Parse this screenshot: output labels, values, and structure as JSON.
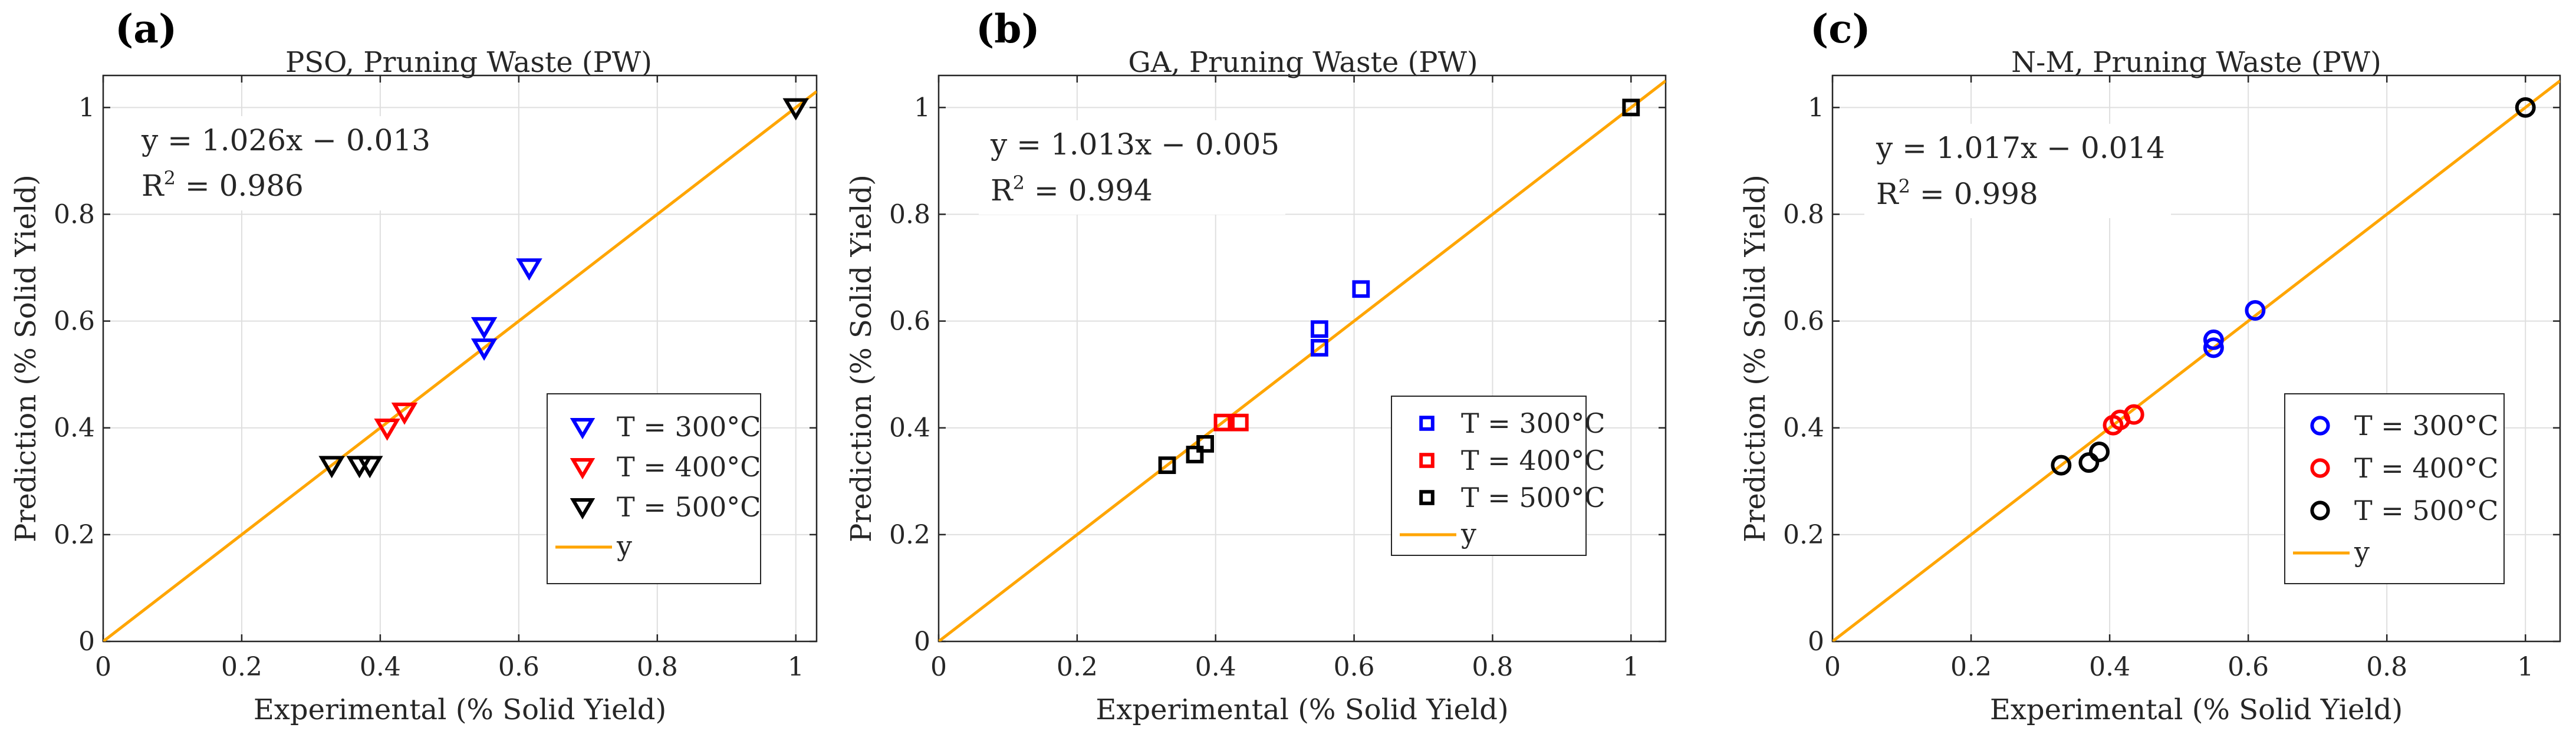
{
  "chart_data": [
    {
      "type": "scatter",
      "panel_label": "(a)",
      "title": "PSO, Pruning Waste (PW)",
      "xlabel": "Experimental (% Solid Yield)",
      "ylabel": "Prediction (% Solid Yield)",
      "xlim": [
        0,
        1.03
      ],
      "ylim": [
        0,
        1.06
      ],
      "xticks": [
        0,
        0.2,
        0.4,
        0.6,
        0.8,
        1
      ],
      "xtick_labels": [
        "0",
        "0.2",
        "0.4",
        "0.6",
        "0.8",
        "1"
      ],
      "yticks": [
        0,
        0.2,
        0.4,
        0.6,
        0.8,
        1
      ],
      "ytick_labels": [
        "0",
        "0.2",
        "0.4",
        "0.6",
        "0.8",
        "1"
      ],
      "grid": true,
      "marker": "triangle-down",
      "fit_equation": "y = 1.026x − 0.013",
      "r2_prefix": "R",
      "r2_sup": "2",
      "r2_value": " = 0.986",
      "series": [
        {
          "name": "T = 300°C",
          "color": "#0000ff",
          "points": [
            [
              0.55,
              0.59
            ],
            [
              0.55,
              0.55
            ],
            [
              0.615,
              0.7
            ]
          ]
        },
        {
          "name": "T = 400°C",
          "color": "#ff0000",
          "points": [
            [
              0.41,
              0.4
            ],
            [
              0.435,
              0.43
            ]
          ]
        },
        {
          "name": "T = 500°C",
          "color": "#000000",
          "points": [
            [
              0.33,
              0.33
            ],
            [
              0.37,
              0.33
            ],
            [
              0.385,
              0.33
            ],
            [
              1.0,
              1.0
            ]
          ]
        }
      ],
      "line": {
        "name": "y",
        "color": "#ffa500",
        "slope": 1.0,
        "intercept": 0.0
      }
    },
    {
      "type": "scatter",
      "panel_label": "(b)",
      "title": "GA, Pruning Waste (PW)",
      "xlabel": "Experimental (% Solid Yield)",
      "ylabel": "Prediction (% Solid Yield)",
      "xlim": [
        0,
        1.05
      ],
      "ylim": [
        0,
        1.06
      ],
      "xticks": [
        0,
        0.2,
        0.4,
        0.6,
        0.8,
        1
      ],
      "xtick_labels": [
        "0",
        "0.2",
        "0.4",
        "0.6",
        "0.8",
        "1"
      ],
      "yticks": [
        0,
        0.2,
        0.4,
        0.6,
        0.8,
        1
      ],
      "ytick_labels": [
        "0",
        "0.2",
        "0.4",
        "0.6",
        "0.8",
        "1"
      ],
      "grid": true,
      "marker": "square",
      "fit_equation": "y = 1.013x − 0.005",
      "r2_prefix": "R",
      "r2_sup": "2",
      "r2_value": " = 0.994",
      "series": [
        {
          "name": "T = 300°C",
          "color": "#0000ff",
          "points": [
            [
              0.55,
              0.585
            ],
            [
              0.55,
              0.55
            ],
            [
              0.61,
              0.66
            ]
          ]
        },
        {
          "name": "T = 400°C",
          "color": "#ff0000",
          "points": [
            [
              0.41,
              0.41
            ],
            [
              0.435,
              0.41
            ]
          ]
        },
        {
          "name": "T = 500°C",
          "color": "#000000",
          "points": [
            [
              0.33,
              0.33
            ],
            [
              0.37,
              0.35
            ],
            [
              0.385,
              0.37
            ],
            [
              1.0,
              1.0
            ]
          ]
        }
      ],
      "line": {
        "name": "y",
        "color": "#ffa500",
        "slope": 1.0,
        "intercept": 0.0
      }
    },
    {
      "type": "scatter",
      "panel_label": "(c)",
      "title": "N-M, Pruning Waste (PW)",
      "xlabel": "Experimental (% Solid Yield)",
      "ylabel": "Prediction (% Solid Yield)",
      "xlim": [
        0,
        1.05
      ],
      "ylim": [
        0,
        1.06
      ],
      "xticks": [
        0,
        0.2,
        0.4,
        0.6,
        0.8,
        1
      ],
      "xtick_labels": [
        "0",
        "0.2",
        "0.4",
        "0.6",
        "0.8",
        "1"
      ],
      "yticks": [
        0,
        0.2,
        0.4,
        0.6,
        0.8,
        1
      ],
      "ytick_labels": [
        "0",
        "0.2",
        "0.4",
        "0.6",
        "0.8",
        "1"
      ],
      "grid": true,
      "marker": "circle",
      "fit_equation": "y = 1.017x − 0.014",
      "r2_prefix": "R",
      "r2_sup": "2",
      "r2_value": " = 0.998",
      "series": [
        {
          "name": "T = 300°C",
          "color": "#0000ff",
          "points": [
            [
              0.55,
              0.565
            ],
            [
              0.55,
              0.55
            ],
            [
              0.61,
              0.62
            ]
          ]
        },
        {
          "name": "T = 400°C",
          "color": "#ff0000",
          "points": [
            [
              0.405,
              0.405
            ],
            [
              0.415,
              0.415
            ],
            [
              0.435,
              0.425
            ]
          ]
        },
        {
          "name": "T = 500°C",
          "color": "#000000",
          "points": [
            [
              0.33,
              0.33
            ],
            [
              0.37,
              0.335
            ],
            [
              0.385,
              0.355
            ],
            [
              1.0,
              1.0
            ]
          ]
        }
      ],
      "line": {
        "name": "y",
        "color": "#ffa500",
        "slope": 1.0,
        "intercept": 0.0
      }
    }
  ]
}
